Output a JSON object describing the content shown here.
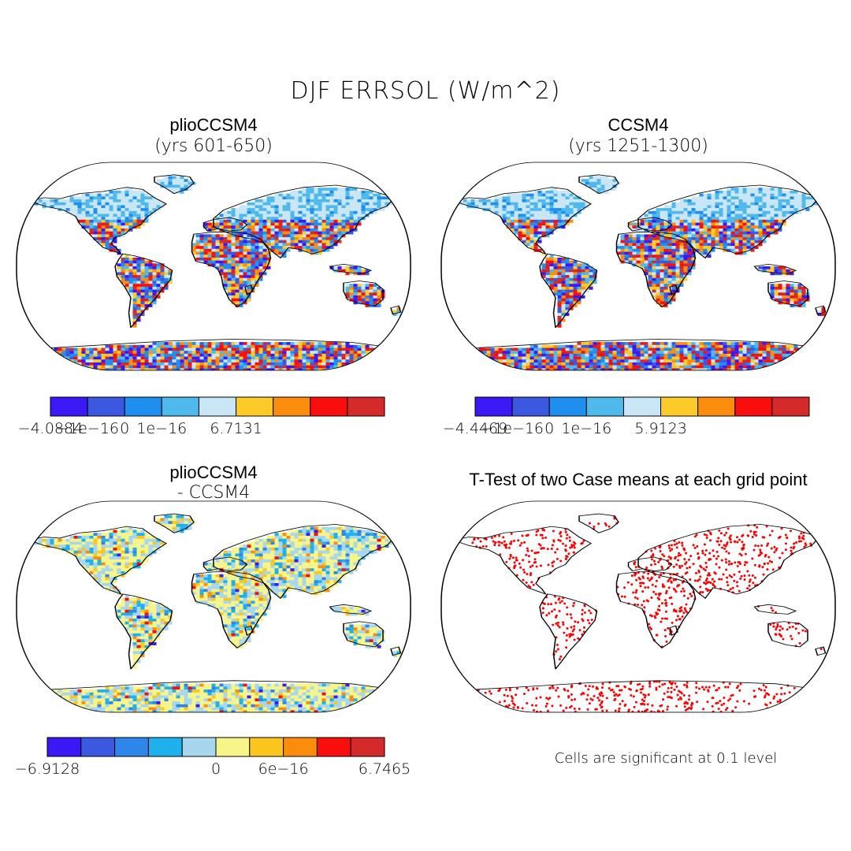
{
  "figure": {
    "title": "DJF ERRSOL (W/m^2)",
    "footnote": "Cells are significant at 0.1 level"
  },
  "panels": [
    {
      "id": "plio",
      "title": "plioCCSM4",
      "subtitle": "(yrs 601-650)",
      "palette": [
        "#3b19f5",
        "#3a58e0",
        "#1f8fef",
        "#4fb9ec",
        "#c9e6f6",
        "#fccb29",
        "#fb8c0c",
        "#f90e0e",
        "#d42a2a"
      ],
      "colorbar_labels": [
        "-4.0884",
        "-1e-16",
        "0",
        "1e-16",
        "6.7131"
      ],
      "colorbar_label_at": [
        0,
        1,
        2,
        3,
        5
      ],
      "value_range": [
        -4.0884,
        6.7131
      ]
    },
    {
      "id": "ccsm4",
      "title": "CCSM4",
      "subtitle": "(yrs 1251-1300)",
      "palette": [
        "#3b19f5",
        "#3a58e0",
        "#1f8fef",
        "#4fb9ec",
        "#c9e6f6",
        "#fccb29",
        "#fb8c0c",
        "#f90e0e",
        "#d42a2a"
      ],
      "colorbar_labels": [
        "-4.4469",
        "-1e-16",
        "0",
        "1e-16",
        "5.9123"
      ],
      "colorbar_label_at": [
        0,
        1,
        2,
        3,
        5
      ],
      "value_range": [
        -4.4469,
        5.9123
      ]
    },
    {
      "id": "diff",
      "title": "plioCCSM4",
      "subtitle": "- CCSM4",
      "palette": [
        "#3b19f5",
        "#3a58e0",
        "#2f86ea",
        "#1fb0ee",
        "#a7d6ef",
        "#f7f58a",
        "#fcc61e",
        "#fb8c0c",
        "#f90e0e",
        "#d42a2a"
      ],
      "colorbar_labels": [
        "-6.9128",
        "0",
        "6e-16",
        "6.7465"
      ],
      "colorbar_label_at": [
        0,
        5,
        7,
        10
      ],
      "value_range": [
        -6.9128,
        6.7465
      ]
    },
    {
      "id": "ttest",
      "title": "T-Test of two Case means at each grid point",
      "significance_color": "#ff0000",
      "significance_level": 0.1
    }
  ]
}
